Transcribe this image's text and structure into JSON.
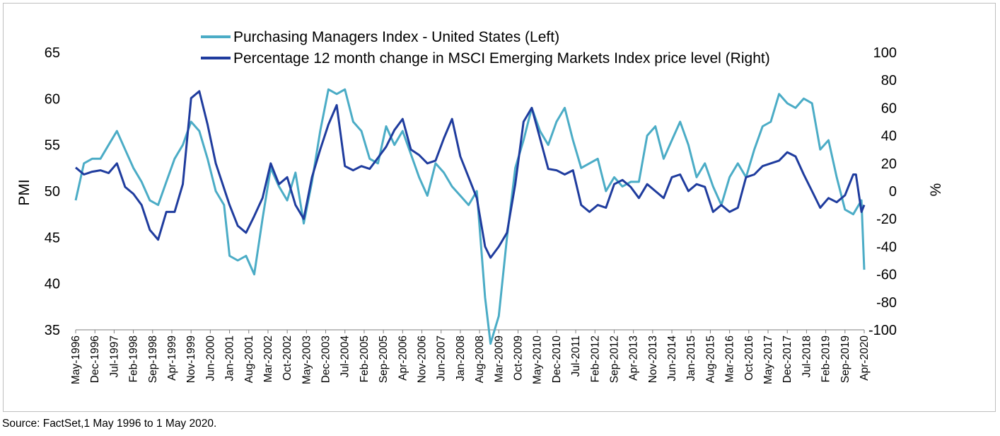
{
  "source_note": "Source: FactSet,1 May 1996 to 1 May 2020.",
  "chart_data": {
    "type": "line",
    "y_left_label": "PMI",
    "y_right_label": "%",
    "y_left_lim": [
      35,
      65
    ],
    "y_left_ticks": [
      "35",
      "40",
      "45",
      "50",
      "55",
      "60",
      "65"
    ],
    "y_right_lim": [
      -100,
      100
    ],
    "y_right_ticks": [
      "-100",
      "-80",
      "-60",
      "-40",
      "-20",
      "0",
      "20",
      "40",
      "60",
      "80",
      "100"
    ],
    "x_tick_labels": [
      "May-1996",
      "Dec-1996",
      "Jul-1997",
      "Feb-1998",
      "Sep-1998",
      "Apr-1999",
      "Nov-1999",
      "Jun-2000",
      "Jan-2001",
      "Aug-2001",
      "Mar-2002",
      "Oct-2002",
      "May-2003",
      "Dec-2003",
      "Jul-2004",
      "Feb-2005",
      "Sep-2005",
      "Apr-2006",
      "Nov-2006",
      "Jun-2007",
      "Jan-2008",
      "Aug-2008",
      "Mar-2009",
      "Oct-2009",
      "May-2010",
      "Dec-2010",
      "Jul-2011",
      "Feb-2012",
      "Sep-2012",
      "Apr-2013",
      "Nov-2013",
      "Jun-2014",
      "Jan-2015",
      "Aug-2015",
      "Mar-2016",
      "Oct-2016",
      "May-2017",
      "Dec-2017",
      "Jul-2018",
      "Feb-2019",
      "Sep-2019",
      "Apr-2020"
    ],
    "grid": false,
    "legend_position": "top",
    "series": [
      {
        "name": "Purchasing Managers Index - United States (Left)",
        "axis": "left",
        "color": "#4bacc6",
        "points": [
          [
            "1996-05",
            49.0
          ],
          [
            "1996-08",
            53.0
          ],
          [
            "1996-11",
            53.5
          ],
          [
            "1997-02",
            53.5
          ],
          [
            "1997-05",
            55.0
          ],
          [
            "1997-08",
            56.5
          ],
          [
            "1997-11",
            54.5
          ],
          [
            "1998-02",
            52.5
          ],
          [
            "1998-05",
            51.0
          ],
          [
            "1998-08",
            49.0
          ],
          [
            "1998-11",
            48.5
          ],
          [
            "1999-02",
            51.0
          ],
          [
            "1999-05",
            53.5
          ],
          [
            "1999-08",
            55.0
          ],
          [
            "1999-11",
            57.5
          ],
          [
            "2000-02",
            56.5
          ],
          [
            "2000-05",
            53.5
          ],
          [
            "2000-08",
            50.0
          ],
          [
            "2000-11",
            48.5
          ],
          [
            "2001-01",
            43.0
          ],
          [
            "2001-04",
            42.5
          ],
          [
            "2001-07",
            43.0
          ],
          [
            "2001-10",
            41.0
          ],
          [
            "2002-01",
            47.0
          ],
          [
            "2002-04",
            52.5
          ],
          [
            "2002-07",
            50.5
          ],
          [
            "2002-10",
            49.0
          ],
          [
            "2003-01",
            52.0
          ],
          [
            "2003-04",
            46.5
          ],
          [
            "2003-07",
            51.0
          ],
          [
            "2003-10",
            56.5
          ],
          [
            "2004-01",
            61.0
          ],
          [
            "2004-04",
            60.5
          ],
          [
            "2004-07",
            61.0
          ],
          [
            "2004-10",
            57.5
          ],
          [
            "2005-01",
            56.5
          ],
          [
            "2005-04",
            53.5
          ],
          [
            "2005-07",
            53.0
          ],
          [
            "2005-10",
            57.0
          ],
          [
            "2006-01",
            55.0
          ],
          [
            "2006-04",
            56.5
          ],
          [
            "2006-07",
            54.0
          ],
          [
            "2006-10",
            51.5
          ],
          [
            "2007-01",
            49.5
          ],
          [
            "2007-04",
            53.0
          ],
          [
            "2007-07",
            52.0
          ],
          [
            "2007-10",
            50.5
          ],
          [
            "2008-01",
            49.5
          ],
          [
            "2008-04",
            48.5
          ],
          [
            "2008-07",
            50.0
          ],
          [
            "2008-10",
            38.5
          ],
          [
            "2008-12",
            33.5
          ],
          [
            "2009-03",
            36.5
          ],
          [
            "2009-06",
            45.0
          ],
          [
            "2009-09",
            52.5
          ],
          [
            "2009-12",
            55.5
          ],
          [
            "2010-03",
            59.0
          ],
          [
            "2010-06",
            56.5
          ],
          [
            "2010-09",
            55.0
          ],
          [
            "2010-12",
            57.5
          ],
          [
            "2011-03",
            59.0
          ],
          [
            "2011-06",
            55.5
          ],
          [
            "2011-09",
            52.5
          ],
          [
            "2011-12",
            53.0
          ],
          [
            "2012-03",
            53.5
          ],
          [
            "2012-06",
            50.0
          ],
          [
            "2012-09",
            51.5
          ],
          [
            "2012-12",
            50.5
          ],
          [
            "2013-03",
            51.0
          ],
          [
            "2013-06",
            51.0
          ],
          [
            "2013-09",
            56.0
          ],
          [
            "2013-12",
            57.0
          ],
          [
            "2014-03",
            53.5
          ],
          [
            "2014-06",
            55.5
          ],
          [
            "2014-09",
            57.5
          ],
          [
            "2014-12",
            55.0
          ],
          [
            "2015-03",
            51.5
          ],
          [
            "2015-06",
            53.0
          ],
          [
            "2015-09",
            50.5
          ],
          [
            "2015-12",
            48.5
          ],
          [
            "2016-03",
            51.5
          ],
          [
            "2016-06",
            53.0
          ],
          [
            "2016-09",
            51.5
          ],
          [
            "2016-12",
            54.5
          ],
          [
            "2017-03",
            57.0
          ],
          [
            "2017-06",
            57.5
          ],
          [
            "2017-09",
            60.5
          ],
          [
            "2017-12",
            59.5
          ],
          [
            "2018-03",
            59.0
          ],
          [
            "2018-06",
            60.0
          ],
          [
            "2018-09",
            59.5
          ],
          [
            "2018-12",
            54.5
          ],
          [
            "2019-03",
            55.5
          ],
          [
            "2019-06",
            51.5
          ],
          [
            "2019-09",
            48.0
          ],
          [
            "2019-12",
            47.5
          ],
          [
            "2020-03",
            49.0
          ],
          [
            "2020-04",
            41.5
          ]
        ]
      },
      {
        "name": "Percentage 12 month change in MSCI Emerging Markets Index price level (Right)",
        "axis": "right",
        "color": "#1f3c9e",
        "points": [
          [
            "1996-05",
            17
          ],
          [
            "1996-08",
            12
          ],
          [
            "1996-11",
            14
          ],
          [
            "1997-02",
            15
          ],
          [
            "1997-05",
            13
          ],
          [
            "1997-08",
            20
          ],
          [
            "1997-11",
            3
          ],
          [
            "1998-02",
            -2
          ],
          [
            "1998-05",
            -10
          ],
          [
            "1998-08",
            -28
          ],
          [
            "1998-11",
            -35
          ],
          [
            "1999-02",
            -15
          ],
          [
            "1999-05",
            -15
          ],
          [
            "1999-08",
            5
          ],
          [
            "1999-11",
            67
          ],
          [
            "2000-02",
            72
          ],
          [
            "2000-05",
            48
          ],
          [
            "2000-08",
            20
          ],
          [
            "2000-11",
            2
          ],
          [
            "2001-01",
            -10
          ],
          [
            "2001-04",
            -25
          ],
          [
            "2001-07",
            -30
          ],
          [
            "2001-10",
            -18
          ],
          [
            "2002-01",
            -5
          ],
          [
            "2002-04",
            20
          ],
          [
            "2002-07",
            5
          ],
          [
            "2002-10",
            10
          ],
          [
            "2003-01",
            -10
          ],
          [
            "2003-04",
            -20
          ],
          [
            "2003-07",
            10
          ],
          [
            "2003-10",
            30
          ],
          [
            "2004-01",
            48
          ],
          [
            "2004-04",
            62
          ],
          [
            "2004-07",
            18
          ],
          [
            "2004-10",
            15
          ],
          [
            "2005-01",
            18
          ],
          [
            "2005-04",
            16
          ],
          [
            "2005-07",
            24
          ],
          [
            "2005-10",
            32
          ],
          [
            "2006-01",
            44
          ],
          [
            "2006-04",
            52
          ],
          [
            "2006-07",
            30
          ],
          [
            "2006-10",
            26
          ],
          [
            "2007-01",
            20
          ],
          [
            "2007-04",
            22
          ],
          [
            "2007-07",
            38
          ],
          [
            "2007-10",
            52
          ],
          [
            "2008-01",
            25
          ],
          [
            "2008-04",
            10
          ],
          [
            "2008-07",
            -5
          ],
          [
            "2008-10",
            -40
          ],
          [
            "2008-12",
            -48
          ],
          [
            "2009-03",
            -40
          ],
          [
            "2009-06",
            -30
          ],
          [
            "2009-09",
            5
          ],
          [
            "2009-12",
            50
          ],
          [
            "2010-03",
            60
          ],
          [
            "2010-06",
            38
          ],
          [
            "2010-09",
            16
          ],
          [
            "2010-12",
            15
          ],
          [
            "2011-03",
            12
          ],
          [
            "2011-06",
            15
          ],
          [
            "2011-09",
            -10
          ],
          [
            "2011-12",
            -15
          ],
          [
            "2012-03",
            -10
          ],
          [
            "2012-06",
            -12
          ],
          [
            "2012-09",
            5
          ],
          [
            "2012-12",
            8
          ],
          [
            "2013-03",
            3
          ],
          [
            "2013-06",
            -5
          ],
          [
            "2013-09",
            5
          ],
          [
            "2013-12",
            0
          ],
          [
            "2014-03",
            -5
          ],
          [
            "2014-06",
            10
          ],
          [
            "2014-09",
            12
          ],
          [
            "2014-12",
            0
          ],
          [
            "2015-03",
            5
          ],
          [
            "2015-06",
            3
          ],
          [
            "2015-09",
            -15
          ],
          [
            "2015-12",
            -10
          ],
          [
            "2016-03",
            -15
          ],
          [
            "2016-06",
            -12
          ],
          [
            "2016-09",
            10
          ],
          [
            "2016-12",
            12
          ],
          [
            "2017-03",
            18
          ],
          [
            "2017-06",
            20
          ],
          [
            "2017-09",
            22
          ],
          [
            "2017-12",
            28
          ],
          [
            "2018-03",
            25
          ],
          [
            "2018-06",
            12
          ],
          [
            "2018-09",
            0
          ],
          [
            "2018-12",
            -12
          ],
          [
            "2019-03",
            -5
          ],
          [
            "2019-06",
            -8
          ],
          [
            "2019-09",
            -3
          ],
          [
            "2019-12",
            12
          ],
          [
            "2020-01",
            12
          ],
          [
            "2020-03",
            -15
          ],
          [
            "2020-04",
            -10
          ]
        ]
      }
    ]
  }
}
